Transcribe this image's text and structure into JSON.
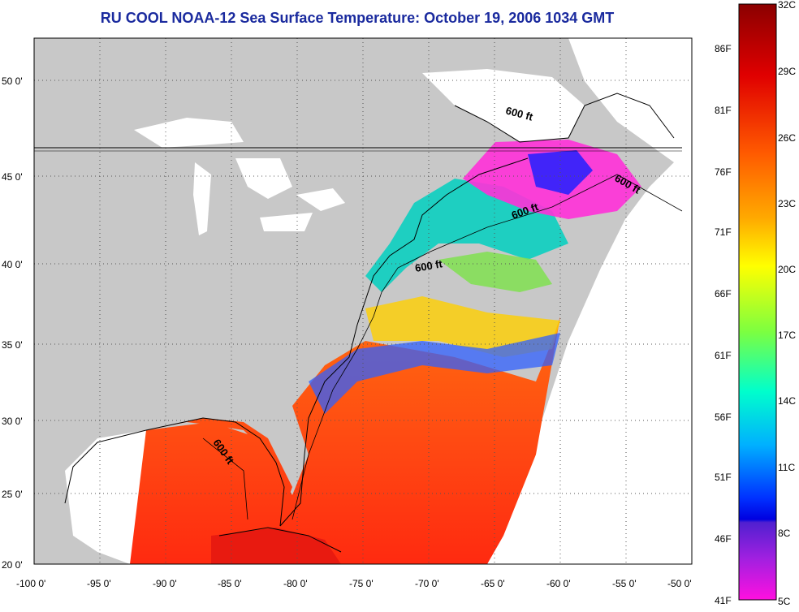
{
  "title": "RU COOL  NOAA-12  Sea Surface Temperature:  October 19, 2006 1034 GMT",
  "axes": {
    "lon_ticks": [
      "-100 0'",
      "-95 0'",
      "-90 0'",
      "-85 0'",
      "-80 0'",
      "-75 0'",
      "-70 0'",
      "-65 0'",
      "-60 0'",
      "-55 0'",
      "-50 0'"
    ],
    "lat_ticks": [
      "50 0'",
      "45 0'",
      "40 0'",
      "35 0'",
      "30 0'",
      "25 0'",
      "20 0'"
    ]
  },
  "contour_label": "600 ft",
  "colorbar": {
    "fahrenheit": [
      "86F",
      "81F",
      "76F",
      "71F",
      "66F",
      "61F",
      "56F",
      "51F",
      "46F",
      "41F"
    ],
    "celsius": [
      "32C",
      "29C",
      "26C",
      "23C",
      "20C",
      "17C",
      "14C",
      "11C",
      "8C",
      "5C"
    ]
  },
  "colors": {
    "land": "#c8c8c8",
    "water_cloud": "#ffffff",
    "title": "#1a2a9e"
  }
}
